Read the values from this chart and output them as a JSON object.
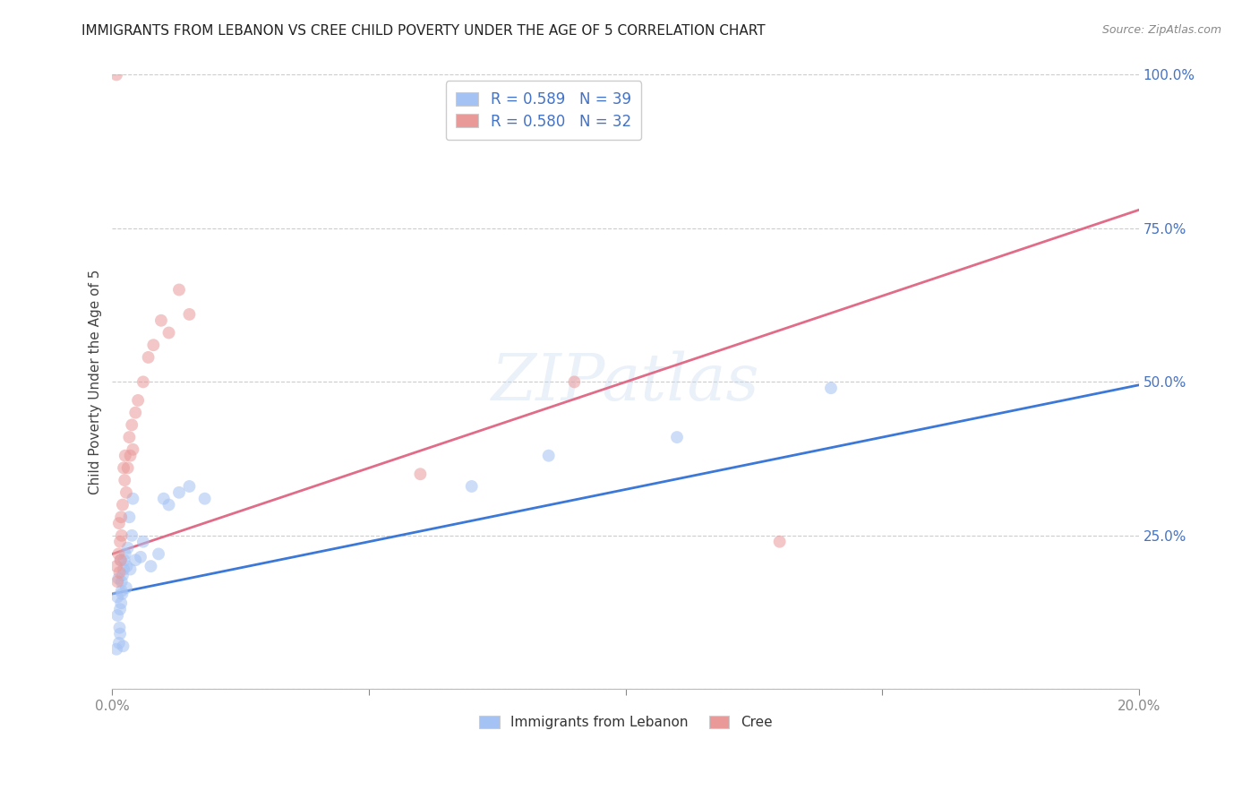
{
  "title": "IMMIGRANTS FROM LEBANON VS CREE CHILD POVERTY UNDER THE AGE OF 5 CORRELATION CHART",
  "source": "Source: ZipAtlas.com",
  "ylabel": "Child Poverty Under the Age of 5",
  "xlim": [
    0,
    0.2
  ],
  "ylim": [
    0,
    1.0
  ],
  "xticks": [
    0.0,
    0.05,
    0.1,
    0.15,
    0.2
  ],
  "xticklabels": [
    "0.0%",
    "",
    "",
    "",
    "20.0%"
  ],
  "yticks": [
    0.0,
    0.25,
    0.5,
    0.75,
    1.0
  ],
  "yticklabels": [
    "",
    "25.0%",
    "50.0%",
    "75.0%",
    "100.0%"
  ],
  "blue_R": 0.589,
  "blue_N": 39,
  "pink_R": 0.58,
  "pink_N": 32,
  "blue_label": "Immigrants from Lebanon",
  "pink_label": "Cree",
  "blue_color": "#a4c2f4",
  "pink_color": "#ea9999",
  "blue_line_color": "#3c78d8",
  "pink_line_color": "#e06c88",
  "legend_text_color": "#4472c4",
  "title_color": "#222222",
  "axis_label_color": "#444444",
  "tick_color": "#4472c4",
  "grid_color": "#cccccc",
  "background_color": "#ffffff",
  "blue_x": [
    0.0008,
    0.001,
    0.001,
    0.0012,
    0.0013,
    0.0014,
    0.0015,
    0.0015,
    0.0016,
    0.0017,
    0.0018,
    0.0018,
    0.0019,
    0.002,
    0.0021,
    0.0022,
    0.0023,
    0.0025,
    0.0027,
    0.0028,
    0.003,
    0.0033,
    0.0035,
    0.0038,
    0.004,
    0.0045,
    0.0055,
    0.006,
    0.0075,
    0.009,
    0.01,
    0.011,
    0.013,
    0.015,
    0.018,
    0.07,
    0.085,
    0.11,
    0.14
  ],
  "blue_y": [
    0.065,
    0.12,
    0.15,
    0.18,
    0.075,
    0.1,
    0.09,
    0.13,
    0.21,
    0.14,
    0.16,
    0.175,
    0.155,
    0.185,
    0.07,
    0.195,
    0.21,
    0.22,
    0.165,
    0.2,
    0.23,
    0.28,
    0.195,
    0.25,
    0.31,
    0.21,
    0.215,
    0.24,
    0.2,
    0.22,
    0.31,
    0.3,
    0.32,
    0.33,
    0.31,
    0.33,
    0.38,
    0.41,
    0.49
  ],
  "pink_x": [
    0.0008,
    0.001,
    0.0012,
    0.0013,
    0.0014,
    0.0015,
    0.0016,
    0.0017,
    0.0018,
    0.002,
    0.0022,
    0.0024,
    0.0025,
    0.0027,
    0.003,
    0.0033,
    0.0035,
    0.0038,
    0.004,
    0.0045,
    0.005,
    0.006,
    0.007,
    0.008,
    0.0095,
    0.011,
    0.013,
    0.015,
    0.06,
    0.09,
    0.13,
    0.0008
  ],
  "pink_y": [
    0.2,
    0.175,
    0.22,
    0.27,
    0.19,
    0.24,
    0.21,
    0.28,
    0.25,
    0.3,
    0.36,
    0.34,
    0.38,
    0.32,
    0.36,
    0.41,
    0.38,
    0.43,
    0.39,
    0.45,
    0.47,
    0.5,
    0.54,
    0.56,
    0.6,
    0.58,
    0.65,
    0.61,
    0.35,
    0.5,
    0.24,
    1.0
  ],
  "blue_trendline_x": [
    0.0,
    0.2
  ],
  "blue_trendline_y": [
    0.155,
    0.495
  ],
  "pink_trendline_x": [
    0.0,
    0.2
  ],
  "pink_trendline_y": [
    0.22,
    0.78
  ],
  "marker_size": 100,
  "marker_alpha": 0.55,
  "line_width": 2.0,
  "figsize": [
    14.06,
    8.92
  ],
  "dpi": 100
}
